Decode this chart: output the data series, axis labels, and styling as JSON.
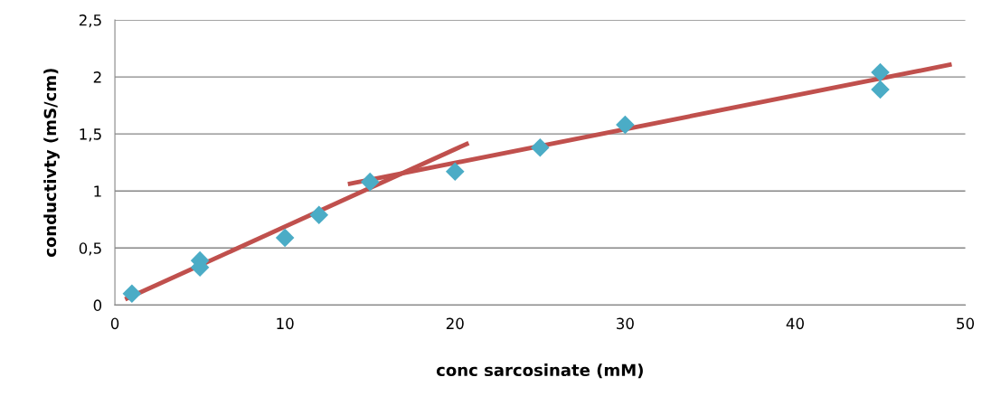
{
  "chart_data": {
    "type": "scatter",
    "xlabel": "conc sarcosinate (mM)",
    "ylabel": "conductivty (mS/cm)",
    "xlim": [
      0,
      50
    ],
    "xticks": [
      0,
      10,
      20,
      30,
      40,
      50
    ],
    "ylim": [
      0,
      2.5
    ],
    "yticks": [
      0,
      {
        "value": 0.5,
        "label": "0,5"
      },
      1,
      {
        "value": 1.5,
        "label": "1,5"
      },
      2,
      {
        "value": 2.5,
        "label": "2,5"
      }
    ],
    "grid": "y",
    "marker": "diamond",
    "legend": false,
    "series": [
      {
        "color": "#4bacc6",
        "x": [
          1,
          5,
          5,
          10,
          12,
          15,
          20,
          25,
          30,
          45,
          45
        ],
        "values": [
          0.1,
          0.39,
          0.33,
          0.59,
          0.79,
          1.08,
          1.17,
          1.38,
          1.58,
          2.04,
          1.89
        ]
      },
      {
        "type": "line",
        "color": "#c0504d",
        "marker": "none",
        "x": [
          0.6,
          20.8
        ],
        "values": [
          0.05,
          1.42
        ]
      },
      {
        "type": "line",
        "color": "#c0504d",
        "marker": "none",
        "x": [
          13.7,
          49.2
        ],
        "values": [
          1.06,
          2.11
        ]
      }
    ]
  }
}
